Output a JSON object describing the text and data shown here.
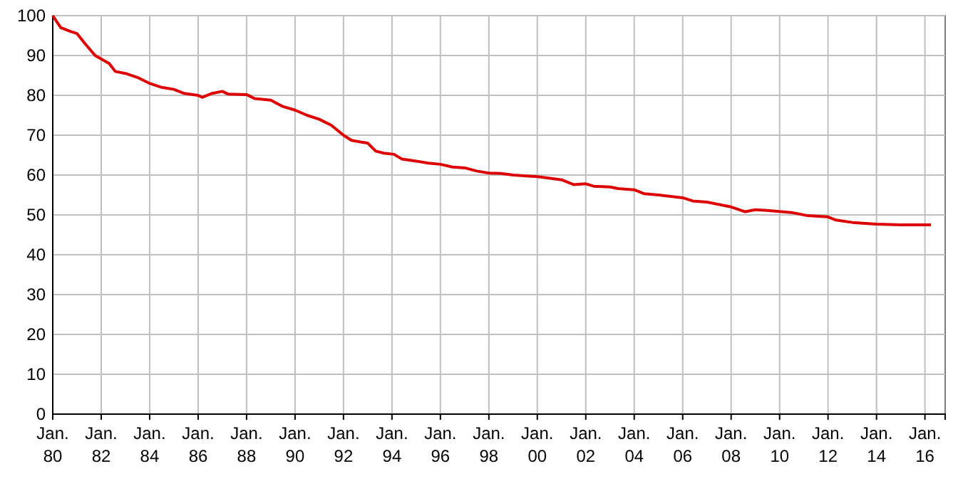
{
  "chart_data": {
    "type": "line",
    "grid": true,
    "line_style": "solid",
    "marker": "none",
    "xlim": [
      "1980-01",
      "2016-11"
    ],
    "xticks": [
      {
        "value": "1980-01",
        "label": "Jan.\n80"
      },
      {
        "value": "1982-01",
        "label": "Jan.\n82"
      },
      {
        "value": "1984-01",
        "label": "Jan.\n84"
      },
      {
        "value": "1986-01",
        "label": "Jan.\n86"
      },
      {
        "value": "1988-01",
        "label": "Jan.\n88"
      },
      {
        "value": "1990-01",
        "label": "Jan.\n90"
      },
      {
        "value": "1992-01",
        "label": "Jan.\n92"
      },
      {
        "value": "1994-01",
        "label": "Jan.\n94"
      },
      {
        "value": "1996-01",
        "label": "Jan.\n96"
      },
      {
        "value": "1998-01",
        "label": "Jan.\n98"
      },
      {
        "value": "2000-01",
        "label": "Jan.\n00"
      },
      {
        "value": "2002-01",
        "label": "Jan.\n02"
      },
      {
        "value": "2004-01",
        "label": "Jan.\n04"
      },
      {
        "value": "2006-01",
        "label": "Jan.\n06"
      },
      {
        "value": "2008-01",
        "label": "Jan.\n08"
      },
      {
        "value": "2010-01",
        "label": "Jan.\n10"
      },
      {
        "value": "2012-01",
        "label": "Jan.\n12"
      },
      {
        "value": "2014-01",
        "label": "Jan.\n14"
      },
      {
        "value": "2016-01",
        "label": "Jan.\n16"
      }
    ],
    "ylim": [
      0,
      100
    ],
    "yticks": [
      0,
      10,
      20,
      30,
      40,
      50,
      60,
      70,
      80,
      90,
      100
    ],
    "x": [
      "1980-01",
      "1980-05",
      "1980-10",
      "1981-01",
      "1981-05",
      "1981-10",
      "1982-05",
      "1982-08",
      "1983-01",
      "1983-07",
      "1984-01",
      "1984-07",
      "1985-01",
      "1985-06",
      "1986-01",
      "1986-03",
      "1986-08",
      "1987-01",
      "1987-04",
      "1988-01",
      "1988-05",
      "1989-01",
      "1989-07",
      "1990-01",
      "1990-07",
      "1991-01",
      "1991-07",
      "1992-01",
      "1992-05",
      "1993-01",
      "1993-05",
      "1993-09",
      "1994-02",
      "1994-06",
      "1995-01",
      "1995-07",
      "1996-01",
      "1996-07",
      "1997-01",
      "1997-07",
      "1998-01",
      "1998-07",
      "1999-01",
      "2000-01",
      "2001-01",
      "2001-07",
      "2002-01",
      "2002-05",
      "2003-01",
      "2003-05",
      "2004-01",
      "2004-06",
      "2005-01",
      "2006-01",
      "2006-06",
      "2007-01",
      "2008-01",
      "2008-08",
      "2009-01",
      "2009-07",
      "2010-07",
      "2011-03",
      "2012-01",
      "2012-05",
      "2013-01",
      "2014-01",
      "2015-01",
      "2016-04"
    ],
    "series": [
      {
        "color": "#dd0000",
        "values": [
          100,
          97,
          96,
          95.5,
          93,
          90,
          88,
          86,
          85.5,
          84.5,
          83,
          82,
          81.5,
          80.5,
          80,
          79.5,
          80.5,
          81,
          80.3,
          80.2,
          79.2,
          78.8,
          77.2,
          76.3,
          75,
          74,
          72.5,
          70,
          68.7,
          68,
          66,
          65.5,
          65.2,
          64,
          63.5,
          63,
          62.7,
          62,
          61.8,
          61,
          60.5,
          60.4,
          60,
          59.6,
          58.8,
          57.6,
          57.8,
          57.2,
          57,
          56.6,
          56.3,
          55.3,
          55,
          54.3,
          53.5,
          53.2,
          52,
          50.8,
          51.3,
          51.1,
          50.6,
          49.8,
          49.5,
          48.7,
          48.1,
          47.7,
          47.5,
          47.5
        ]
      }
    ]
  }
}
